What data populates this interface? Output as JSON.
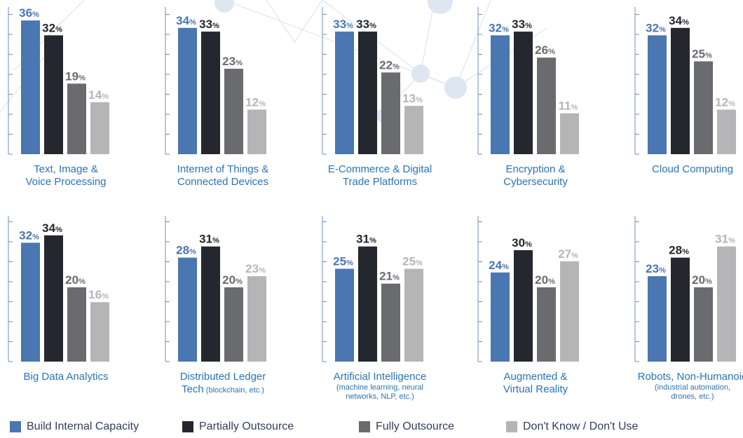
{
  "legend": [
    {
      "name": "Build Internal Capacity",
      "color": "#4a76b1"
    },
    {
      "name": "Partially Outsource",
      "color": "#24272d"
    },
    {
      "name": "Fully Outsource",
      "color": "#6a6b6f"
    },
    {
      "name": "Don't Know / Don't Use",
      "color": "#b5b5b7"
    }
  ],
  "chart_data": [
    {
      "type": "bar",
      "title": [
        "Text, Image &",
        "Voice Processing"
      ],
      "subtitle": "",
      "categories": [
        "Build Internal Capacity",
        "Partially Outsource",
        "Fully Outsource",
        "Don't Know / Don't Use"
      ],
      "values": [
        36,
        32,
        19,
        14
      ],
      "unit": "%"
    },
    {
      "type": "bar",
      "title": [
        "Internet of Things &",
        "Connected Devices"
      ],
      "subtitle": "",
      "categories": [
        "Build Internal Capacity",
        "Partially Outsource",
        "Fully Outsource",
        "Don't Know / Don't Use"
      ],
      "values": [
        34,
        33,
        23,
        12
      ],
      "unit": "%"
    },
    {
      "type": "bar",
      "title": [
        "E-Commerce & Digital",
        "Trade Platforms"
      ],
      "subtitle": "",
      "categories": [
        "Build Internal Capacity",
        "Partially Outsource",
        "Fully Outsource",
        "Don't Know / Don't Use"
      ],
      "values": [
        33,
        33,
        22,
        13
      ],
      "unit": "%"
    },
    {
      "type": "bar",
      "title": [
        "Encryption &",
        "Cybersecurity"
      ],
      "subtitle": "",
      "categories": [
        "Build Internal Capacity",
        "Partially Outsource",
        "Fully Outsource",
        "Don't Know / Don't Use"
      ],
      "values": [
        32,
        33,
        26,
        11
      ],
      "unit": "%"
    },
    {
      "type": "bar",
      "title": [
        "Cloud Computing"
      ],
      "subtitle": "",
      "categories": [
        "Build Internal Capacity",
        "Partially Outsource",
        "Fully Outsource",
        "Don't Know / Don't Use"
      ],
      "values": [
        32,
        34,
        25,
        12
      ],
      "unit": "%"
    },
    {
      "type": "bar",
      "title": [
        "Big Data Analytics"
      ],
      "subtitle": "",
      "categories": [
        "Build Internal Capacity",
        "Partially Outsource",
        "Fully Outsource",
        "Don't Know / Don't Use"
      ],
      "values": [
        32,
        34,
        20,
        16
      ],
      "unit": "%"
    },
    {
      "type": "bar",
      "title": [
        "Distributed Ledger",
        "Tech"
      ],
      "subtitle": "(blockchain, etc.)",
      "categories": [
        "Build Internal Capacity",
        "Partially Outsource",
        "Fully Outsource",
        "Don't Know / Don't Use"
      ],
      "values": [
        28,
        31,
        20,
        23
      ],
      "unit": "%"
    },
    {
      "type": "bar",
      "title": [
        "Artificial Intelligence"
      ],
      "subtitle": "(machine learning, neural\nnetworks, NLP, etc.)",
      "categories": [
        "Build Internal Capacity",
        "Partially Outsource",
        "Fully Outsource",
        "Don't Know / Don't Use"
      ],
      "values": [
        25,
        31,
        21,
        25
      ],
      "unit": "%"
    },
    {
      "type": "bar",
      "title": [
        "Augmented &",
        "Virtual Reality"
      ],
      "subtitle": "",
      "categories": [
        "Build Internal Capacity",
        "Partially Outsource",
        "Fully Outsource",
        "Don't Know / Don't Use"
      ],
      "values": [
        24,
        30,
        20,
        27
      ],
      "unit": "%"
    },
    {
      "type": "bar",
      "title": [
        "Robots, Non-Humanoid"
      ],
      "subtitle": "(industrial automation,\ndrones, etc.)",
      "categories": [
        "Build Internal Capacity",
        "Partially Outsource",
        "Fully Outsource",
        "Don't Know / Don't Use"
      ],
      "values": [
        23,
        28,
        20,
        31
      ],
      "unit": "%"
    }
  ]
}
